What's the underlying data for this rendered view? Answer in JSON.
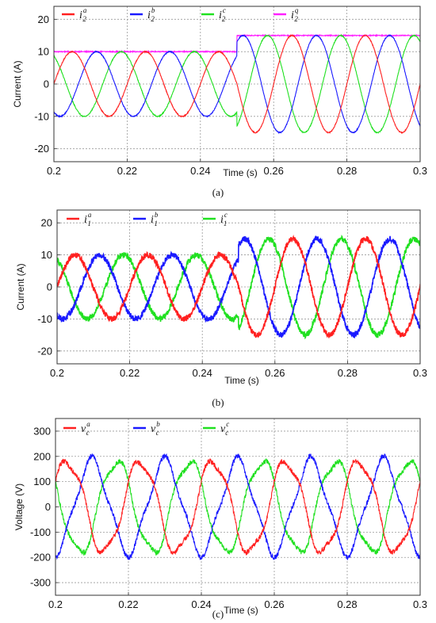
{
  "chart_data": [
    {
      "type": "line",
      "caption": "(a)",
      "xlabel": "Time (s)",
      "ylabel": "Current (A)",
      "xlim": [
        0.2,
        0.3
      ],
      "ylim": [
        -24,
        24
      ],
      "xticks": [
        "0.2",
        "0.22",
        "0.24",
        "0.26",
        "0.28",
        "0.3"
      ],
      "yticks": [
        "20",
        "10",
        "0",
        "-10",
        "-20"
      ],
      "grid": true,
      "legend_position": "top",
      "frequency_hz": 50,
      "step_time": 0.25,
      "series": [
        {
          "name": "i2a",
          "legend_base": "i",
          "legend_sub": "2",
          "legend_sup": "a",
          "color": "#ff2020",
          "kind": "sine",
          "amplitude_before": 10,
          "amplitude_after": 15,
          "phase_deg": 0,
          "noise": 0.15
        },
        {
          "name": "i2b",
          "legend_base": "i",
          "legend_sub": "2",
          "legend_sup": "b",
          "color": "#1a1aff",
          "kind": "sine",
          "amplitude_before": 10,
          "amplitude_after": 15,
          "phase_deg": -120,
          "noise": 0.15
        },
        {
          "name": "i2c",
          "legend_base": "i",
          "legend_sub": "2",
          "legend_sup": "c",
          "color": "#20e020",
          "kind": "sine",
          "amplitude_before": 10,
          "amplitude_after": 15,
          "phase_deg": 120,
          "noise": 0.15
        },
        {
          "name": "i2q",
          "legend_base": "i",
          "legend_sub": "2",
          "legend_sup": "q",
          "color": "#ff20ff",
          "kind": "step",
          "value_before": 10,
          "value_after": 15,
          "noise": 0.15
        }
      ]
    },
    {
      "type": "line",
      "caption": "(b)",
      "xlabel": "Time (s)",
      "ylabel": "Current (A)",
      "xlim": [
        0.2,
        0.3
      ],
      "ylim": [
        -24,
        24
      ],
      "xticks": [
        "0.2",
        "0.22",
        "0.24",
        "0.26",
        "0.28",
        "0.3"
      ],
      "yticks": [
        "20",
        "10",
        "0",
        "-10",
        "-20"
      ],
      "grid": true,
      "legend_position": "top",
      "frequency_hz": 50,
      "step_time": 0.25,
      "series": [
        {
          "name": "i1a",
          "legend_base": "i",
          "legend_sub": "1",
          "legend_sup": "a",
          "color": "#ff2020",
          "kind": "sine",
          "amplitude_before": 10,
          "amplitude_after": 15,
          "phase_deg": 0,
          "noise": 0.9
        },
        {
          "name": "i1b",
          "legend_base": "i",
          "legend_sub": "1",
          "legend_sup": "b",
          "color": "#1a1aff",
          "kind": "sine",
          "amplitude_before": 10,
          "amplitude_after": 15,
          "phase_deg": -120,
          "noise": 0.9
        },
        {
          "name": "i1c",
          "legend_base": "i",
          "legend_sub": "1",
          "legend_sup": "c",
          "color": "#20e020",
          "kind": "sine",
          "amplitude_before": 10,
          "amplitude_after": 15,
          "phase_deg": 120,
          "noise": 0.9
        }
      ]
    },
    {
      "type": "line",
      "caption": "(c)",
      "xlabel": "Time (s)",
      "ylabel": "Voltage (V)",
      "xlim": [
        0.2,
        0.3
      ],
      "ylim": [
        -350,
        350
      ],
      "xticks": [
        "0.2",
        "0.22",
        "0.24",
        "0.26",
        "0.28",
        "0.3"
      ],
      "yticks": [
        "300",
        "200",
        "100",
        "0",
        "-100",
        "-200",
        "-300"
      ],
      "grid": true,
      "legend_position": "top",
      "frequency_hz": 50,
      "step_time": 0.25,
      "series": [
        {
          "name": "vca",
          "legend_base": "v",
          "legend_sub": "c",
          "legend_sup": "a",
          "color": "#ff2020",
          "kind": "sine",
          "amplitude_before": 180,
          "amplitude_after": 180,
          "phase_deg": 30,
          "noise": 10
        },
        {
          "name": "vcb",
          "legend_base": "v",
          "legend_sub": "c",
          "legend_sup": "b",
          "color": "#1a1aff",
          "kind": "sine",
          "amplitude_before": 180,
          "amplitude_after": 180,
          "phase_deg": -90,
          "noise": 10
        },
        {
          "name": "vcc",
          "legend_base": "v",
          "legend_sub": "c",
          "legend_sup": "c",
          "color": "#20e020",
          "kind": "sine",
          "amplitude_before": 180,
          "amplitude_after": 180,
          "phase_deg": 150,
          "noise": 10
        }
      ]
    }
  ]
}
